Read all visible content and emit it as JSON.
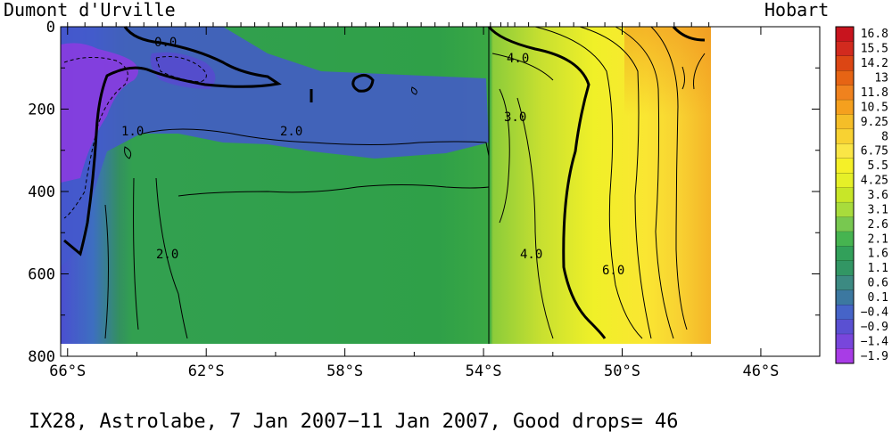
{
  "chart_data": {
    "type": "heatmap",
    "title_left": "Dumont d'Urville",
    "title_right": "Hobart",
    "caption": "IX28, Astrolabe,  7 Jan 2007−11 Jan 2007, Good drops= 46",
    "x_axis": {
      "ticks": [
        -66,
        -62,
        -58,
        -54,
        -50,
        -46
      ],
      "tick_labels": [
        "66°S",
        "62°S",
        "58°S",
        "54°S",
        "50°S",
        "46°S"
      ],
      "range": [
        -66.2,
        -44.3
      ]
    },
    "y_axis": {
      "ticks": [
        0,
        200,
        400,
        600,
        800
      ],
      "tick_labels": [
        "0",
        "200",
        "400",
        "600",
        "800"
      ],
      "range": [
        0,
        800
      ],
      "inverted": true
    },
    "colorbar": {
      "labels": [
        "16.8",
        "15.5",
        "14.2",
        "13",
        "11.8",
        "10.5",
        "9.25",
        "8",
        "6.75",
        "5.5",
        "4.25",
        "3.6",
        "3.1",
        "2.6",
        "2.1",
        "1.6",
        "1.1",
        "0.6",
        "0.1",
        "−0.4",
        "−0.9",
        "−1.4",
        "−1.9"
      ],
      "colors": [
        "#c8141e",
        "#d22a1e",
        "#dc4614",
        "#e66414",
        "#f0821e",
        "#f5a01e",
        "#f5be28",
        "#f8d232",
        "#fae646",
        "#f5f028",
        "#e6f028",
        "#c8e628",
        "#a8dc3c",
        "#78c850",
        "#46b450",
        "#32a05a",
        "#329664",
        "#3c8a82",
        "#3c78a0",
        "#4664c8",
        "#5a50d2",
        "#7846dc",
        "#a83ce6"
      ]
    },
    "contour_labels": [
      "0.0",
      "1.0",
      "2.0",
      "2.0",
      "3.0",
      "4.0",
      "4.0",
      "6.0"
    ],
    "drop_longitudes": [
      -66.0,
      -65.5,
      -65.0,
      -64.6,
      -64.2,
      -63.8,
      -63.4,
      -63.0,
      -62.6,
      -62.2,
      -61.8,
      -61.4,
      -61.0,
      -60.6,
      -60.2,
      -59.8,
      -59.4,
      -59.0,
      -58.6,
      -58.2,
      -57.8,
      -57.4,
      -57.0,
      -56.6,
      -56.2,
      -55.8,
      -55.4,
      -55.0,
      -54.6,
      -54.2,
      -53.8,
      -53.5,
      -53.3,
      -53.1,
      -52.7,
      -52.2,
      -51.8,
      -51.4,
      -51.0,
      -50.5,
      -50.0,
      -49.5,
      -49.0,
      -48.5,
      -48.0,
      -47.5
    ],
    "temperature_section": {
      "lon_nodes": [
        -66,
        -64.6,
        -63.6,
        -54.6,
        -53.6,
        -51,
        -49,
        -47.8,
        -47
      ],
      "near_surface_C": [
        -1.2,
        0.0,
        1.6,
        2.5,
        4.0,
        7.2,
        8.8,
        10.5,
        12.0
      ],
      "deep_C": [
        0.8,
        1.2,
        1.8,
        2.0,
        3.6,
        6.6,
        8.4,
        10.0,
        11.0
      ]
    }
  }
}
